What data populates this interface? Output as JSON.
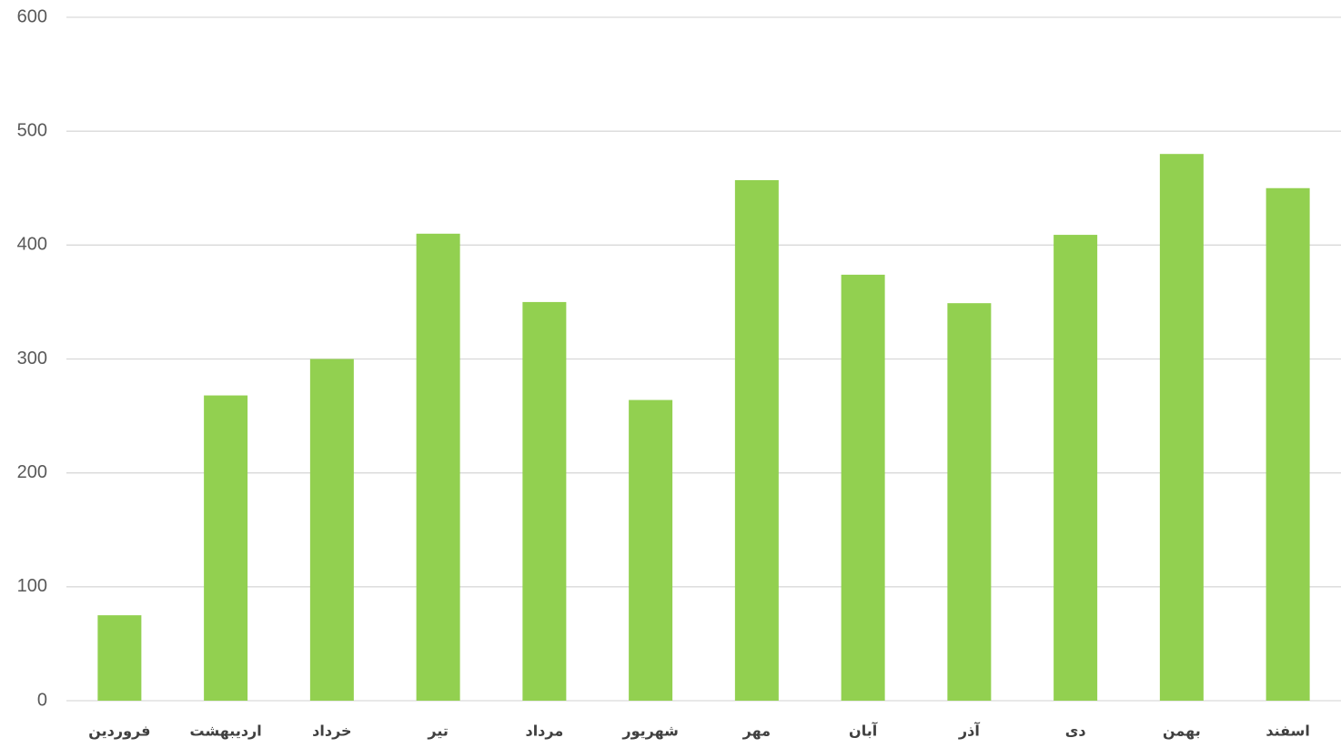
{
  "chart_data": {
    "type": "bar",
    "categories": [
      "فروردین",
      "اردیبهشت",
      "خرداد",
      "تیر",
      "مرداد",
      "شهریور",
      "مهر",
      "آبان",
      "آذر",
      "دی",
      "بهمن",
      "اسفند"
    ],
    "values": [
      75,
      268,
      300,
      410,
      350,
      264,
      457,
      374,
      349,
      409,
      480,
      450
    ],
    "color": "#92d050",
    "ylim": [
      0,
      600
    ],
    "yticks": [
      0,
      100,
      200,
      300,
      400,
      500,
      600
    ],
    "grid": true
  }
}
